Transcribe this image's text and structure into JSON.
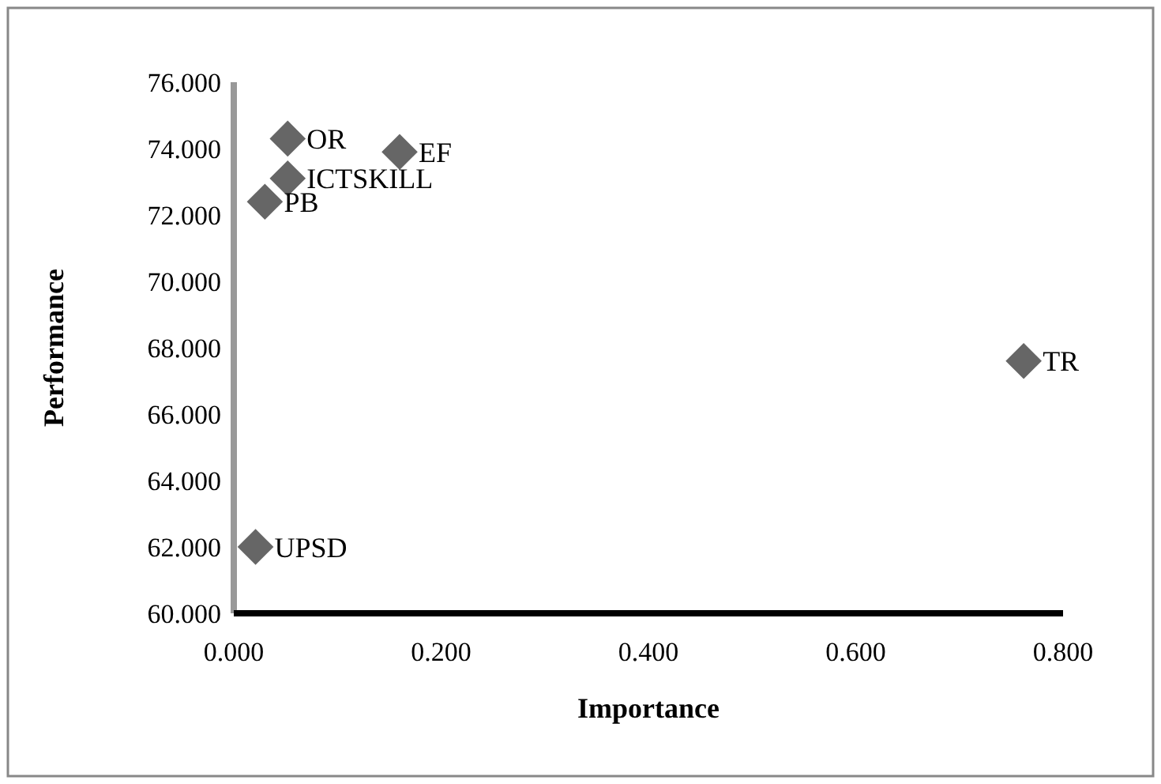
{
  "chart_data": {
    "type": "scatter",
    "xlabel": "Importance",
    "ylabel": "Performance",
    "x": [
      0.052,
      0.16,
      0.052,
      0.03,
      0.762,
      0.021
    ],
    "series": [
      {
        "color": "#666666",
        "values": [
          74.3,
          73.9,
          73.1,
          72.4,
          67.6,
          62.0
        ]
      }
    ],
    "marker": "diamond",
    "grid": false,
    "xlim": [
      0,
      0.8
    ],
    "xticks": [
      {
        "value": 0,
        "label": "0.000"
      },
      {
        "value": 0.2,
        "label": "0.200"
      },
      {
        "value": 0.4,
        "label": "0.400"
      },
      {
        "value": 0.6,
        "label": "0.600"
      },
      {
        "value": 0.8,
        "label": "0.800"
      }
    ],
    "ylim": [
      60,
      76
    ],
    "yticks": [
      {
        "value": 60,
        "label": "60.000"
      },
      {
        "value": 62,
        "label": "62.000"
      },
      {
        "value": 64,
        "label": "64.000"
      },
      {
        "value": 66,
        "label": "66.000"
      },
      {
        "value": 68,
        "label": "68.000"
      },
      {
        "value": 70,
        "label": "70.000"
      },
      {
        "value": 72,
        "label": "72.000"
      },
      {
        "value": 74,
        "label": "74.000"
      },
      {
        "value": 76,
        "label": "76.000"
      }
    ],
    "annotations": [
      {
        "text": "OR",
        "x": 0.052,
        "y": 74.3
      },
      {
        "text": "EF",
        "x": 0.16,
        "y": 73.9
      },
      {
        "text": "ICTSKILL",
        "x": 0.052,
        "y": 73.1
      },
      {
        "text": "PB",
        "x": 0.03,
        "y": 72.4
      },
      {
        "text": "TR",
        "x": 0.762,
        "y": 67.6
      },
      {
        "text": "UPSD",
        "x": 0.021,
        "y": 62.0
      }
    ]
  }
}
